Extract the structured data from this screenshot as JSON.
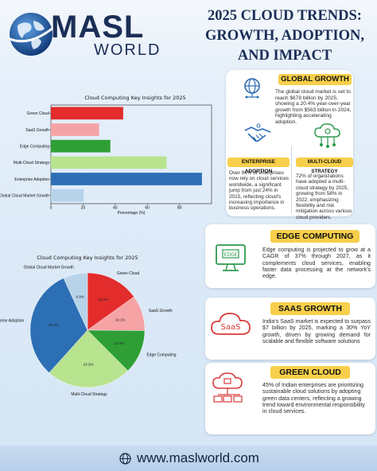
{
  "brand": {
    "name": "MASL",
    "sub": "WORLD"
  },
  "title": {
    "line1": "2025 CLOUD TRENDS:",
    "line2": "GROWTH, ADOPTION,",
    "line3": "AND IMPACT"
  },
  "sections": {
    "global_growth": {
      "title": "GLOBAL GROWTH",
      "icon": "globe-network-icon",
      "text": "The global cloud market is set to reach $678 billion by 2025, showing a 20.4% year-over-year growth from $563 billion in 2024, highlighting accelerating adoption."
    },
    "enterprise_adoption": {
      "title": "ENTERPRISE ADOPTION",
      "icon": "handshake-icon",
      "text": "Over 94% of enterprises now rely on cloud services worldwide, a significant jump from just 24% in 2015, reflecting cloud's increasing importance in business operations."
    },
    "multi_cloud": {
      "title": "MULTI-CLOUD STRATEGY",
      "icon": "cloud-network-icon",
      "text": "72% of organizations have adopted a multi-cloud strategy by 2025, growing from 58% in 2022, emphasizing flexibility and risk mitigation across various cloud providers."
    },
    "edge": {
      "title": "EDGE COMPUTING",
      "icon": "edge-computer-icon",
      "text": "Edge computing is projected to grow at a CAGR of 37% through 2027, as it complements cloud services, enabling faster data processing at the network's edge."
    },
    "saas": {
      "title": "SAAS GROWTH",
      "icon": "saas-cloud-icon",
      "icon_text": "SaaS",
      "text": "India's SaaS market is expected to surpass $7 billion by 2025, marking a 30% YoY growth, driven by growing demand for scalable and flexible software solutions"
    },
    "green": {
      "title": "GREEN CLOUD",
      "icon": "green-cloud-icon",
      "text": "45% of Indian enterprises are prioritizing sustainable cloud solutions by adopting green data centers, reflecting a growing trend toward environmental responsibility in cloud services."
    }
  },
  "footer": {
    "url": "www.maslworld.com",
    "icon": "globe-icon"
  },
  "colors": {
    "navy": "#1b2e57",
    "badge": "#f7cf4a",
    "icon_blue": "#2c6db5",
    "icon_green": "#2e9a4f",
    "icon_red": "#d93a3a"
  },
  "chart_data": [
    {
      "type": "bar",
      "orientation": "horizontal",
      "title": "Cloud Computing Key Insights for 2025",
      "xlabel": "Percentage (%)",
      "ylabel": "",
      "xlim": [
        0,
        100
      ],
      "xticks": [
        "0",
        "20",
        "40",
        "60",
        "80"
      ],
      "categories": [
        "Green Cloud",
        "SaaS Growth",
        "Edge Computing",
        "Multi-Cloud Strategy",
        "Enterprise Adoption",
        "Global Cloud Market Growth"
      ],
      "values": [
        45,
        30,
        37,
        72,
        94,
        20.4
      ],
      "colors": [
        "#e32c2c",
        "#f6a3a6",
        "#2f9f35",
        "#b8e38f",
        "#2d6fb5",
        "#b7d3ea"
      ],
      "grid": false
    },
    {
      "type": "pie",
      "title": "Cloud Computing Key Insights for 2025",
      "labels": [
        "Green Cloud",
        "SaaS Growth",
        "Edge Computing",
        "Multi-Cloud Strategy",
        "Enterprise Adoption",
        "Global Cloud Market Growth"
      ],
      "pct_labels": [
        "15.2%",
        "10.1%",
        "12.5%",
        "24.3%",
        "31.7%",
        "6.9%"
      ],
      "values": [
        15.2,
        10.1,
        12.5,
        24.3,
        31.7,
        6.9
      ],
      "colors": [
        "#e32c2c",
        "#f6a3a6",
        "#2f9f35",
        "#b8e38f",
        "#2d6fb5",
        "#b7d3ea"
      ]
    }
  ]
}
